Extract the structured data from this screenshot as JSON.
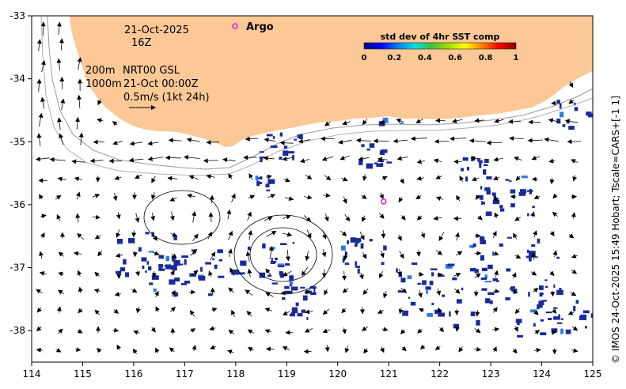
{
  "map": {
    "date": "21-Oct-2025",
    "hour": "16Z",
    "depth_line_1": "200m",
    "depth_line_2": "1000m",
    "product": "NRT00 GSL",
    "product_time": "21-Oct 00:00Z",
    "scale_arrow_label": "0.5m/s (1kt 24h)",
    "argo_label": "Argo",
    "argo_float": {
      "lon": 120.9,
      "lat": -35.95
    },
    "credit": "© IMOS 24-Oct-2025 15:49 Hobart; Tscale=CARS+[-1 1]",
    "colors": {
      "land": "#fbc896",
      "argo": "#e020e0",
      "sst_patch": "#1a2a9c",
      "arrow": "#000000"
    }
  },
  "colorbar": {
    "title": "std dev of 4hr SST comp",
    "ticks": [
      "0",
      "0.2",
      "0.4",
      "0.6",
      "0.8",
      "1"
    ],
    "colormap": [
      "#000080",
      "#0000ff",
      "#0080ff",
      "#00e0e0",
      "#40c040",
      "#a0e000",
      "#ffff00",
      "#ff8000",
      "#ff0000",
      "#800000"
    ]
  },
  "axes": {
    "x_ticks": [
      "114",
      "115",
      "116",
      "117",
      "118",
      "119",
      "120",
      "121",
      "122",
      "123",
      "124",
      "125"
    ],
    "y_ticks": [
      "-33",
      "-34",
      "-35",
      "-36",
      "-37",
      "-38"
    ],
    "lon_range": [
      114,
      125
    ],
    "lat_range": [
      -38.5,
      -33
    ]
  }
}
